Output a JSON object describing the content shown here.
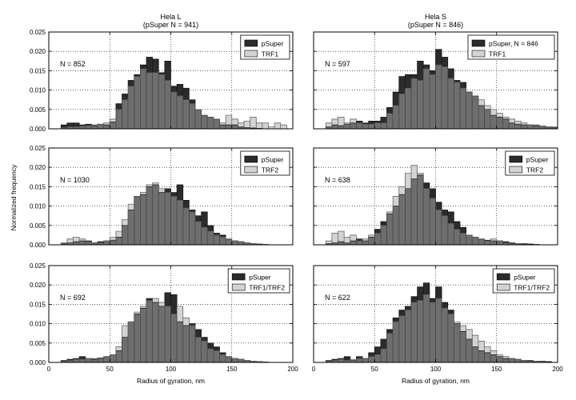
{
  "figure": {
    "ylabel": "Normalized frequency",
    "colors": {
      "pSuper": "#2b2b2b",
      "treatment": "#d3d3d3",
      "overlap": "#6e6e6e"
    }
  },
  "chart_data": [
    {
      "type": "histogram",
      "title": "Hela L\n(pSuper N = 941)",
      "annotation": "N = 852",
      "legend": [
        "pSuper",
        "TRF1"
      ],
      "legend_position": "top-right",
      "xlabel": "",
      "ylabel": "",
      "xlim": [
        0,
        200
      ],
      "ylim": [
        0,
        0.025
      ],
      "xticks": [
        "0",
        "50",
        "100",
        "150",
        "200"
      ],
      "yticks": [
        "0.000",
        "0.005",
        "0.010",
        "0.015",
        "0.020",
        "0.025"
      ],
      "grid": true,
      "bin_start": 10,
      "bin_width": 5,
      "series": [
        {
          "name": "pSuper",
          "values": [
            0.001,
            0.0015,
            0.0015,
            0.001,
            0.0012,
            0.0008,
            0.0012,
            0.001,
            0.0018,
            0.0065,
            0.009,
            0.0125,
            0.014,
            0.0165,
            0.0185,
            0.018,
            0.0145,
            0.0175,
            0.011,
            0.0115,
            0.0105,
            0.0075,
            0.005,
            0.0035,
            0.003,
            0.0025,
            0.001,
            0.001,
            0.001,
            0.0005,
            0.0003,
            0.0002,
            0.0001,
            0.0,
            0.0,
            0.0,
            0.0
          ]
        },
        {
          "name": "TRF1",
          "values": [
            0.0003,
            0.0005,
            0.0005,
            0.0007,
            0.0008,
            0.001,
            0.0012,
            0.0015,
            0.0025,
            0.005,
            0.0075,
            0.011,
            0.0135,
            0.0155,
            0.0145,
            0.0145,
            0.014,
            0.0125,
            0.0095,
            0.0085,
            0.0075,
            0.0065,
            0.005,
            0.0035,
            0.003,
            0.0025,
            0.0015,
            0.0035,
            0.0025,
            0.0015,
            0.002,
            0.003,
            0.0015,
            0.0015,
            0.0005,
            0.0015,
            0.001
          ]
        }
      ]
    },
    {
      "type": "histogram",
      "title": "Hela S\n(pSuper N = 846)",
      "annotation": "N = 597",
      "legend": [
        "pSuper, N = 846",
        "TRF1"
      ],
      "legend_position": "top-right",
      "xlabel": "",
      "ylabel": "",
      "xlim": [
        0,
        200
      ],
      "ylim": [
        0,
        0.025
      ],
      "xticks": [
        "0",
        "50",
        "100",
        "150",
        "200"
      ],
      "yticks": [
        "0.000",
        "0.005",
        "0.010",
        "0.015",
        "0.020",
        "0.025"
      ],
      "grid": true,
      "bin_start": 10,
      "bin_width": 5,
      "series": [
        {
          "name": "pSuper, N = 846",
          "values": [
            0.0005,
            0.001,
            0.0008,
            0.0012,
            0.0015,
            0.002,
            0.0015,
            0.002,
            0.002,
            0.003,
            0.0055,
            0.0095,
            0.0135,
            0.014,
            0.014,
            0.0175,
            0.0165,
            0.015,
            0.0205,
            0.0185,
            0.0155,
            0.0125,
            0.012,
            0.0095,
            0.0085,
            0.006,
            0.005,
            0.0035,
            0.003,
            0.0025,
            0.0015,
            0.0012,
            0.001,
            0.001,
            0.0008,
            0.0005,
            0.0005,
            0.0003,
            0.0003
          ]
        },
        {
          "name": "TRF1",
          "values": [
            0.0015,
            0.0025,
            0.003,
            0.0015,
            0.0025,
            0.0015,
            0.0012,
            0.0012,
            0.0015,
            0.0015,
            0.004,
            0.006,
            0.009,
            0.0105,
            0.013,
            0.0125,
            0.0155,
            0.014,
            0.0165,
            0.016,
            0.013,
            0.012,
            0.0105,
            0.0095,
            0.0085,
            0.0075,
            0.006,
            0.005,
            0.004,
            0.003,
            0.0025,
            0.002,
            0.0015,
            0.001,
            0.001,
            0.0008,
            0.0005,
            0.0005,
            0.0003
          ]
        }
      ]
    },
    {
      "type": "histogram",
      "title": "",
      "annotation": "N = 1030",
      "legend": [
        "pSuper",
        "TRF2"
      ],
      "legend_position": "top-right",
      "xlabel": "",
      "ylabel": "",
      "xlim": [
        0,
        200
      ],
      "ylim": [
        0,
        0.025
      ],
      "xticks": [
        "0",
        "50",
        "100",
        "150",
        "200"
      ],
      "yticks": [
        "0.000",
        "0.005",
        "0.010",
        "0.015",
        "0.020",
        "0.025"
      ],
      "grid": true,
      "bin_start": 10,
      "bin_width": 5,
      "series": [
        {
          "name": "pSuper",
          "values": [
            0.0003,
            0.0005,
            0.0008,
            0.001,
            0.001,
            0.0005,
            0.0008,
            0.001,
            0.0012,
            0.002,
            0.005,
            0.009,
            0.0125,
            0.013,
            0.015,
            0.0155,
            0.0135,
            0.0145,
            0.0135,
            0.0155,
            0.0115,
            0.009,
            0.0075,
            0.0085,
            0.005,
            0.003,
            0.0025,
            0.0015,
            0.001,
            0.0008,
            0.0005,
            0.0003,
            0.0002,
            0.0001,
            0.0,
            0.0,
            0.0
          ]
        },
        {
          "name": "TRF2",
          "values": [
            0.0005,
            0.0015,
            0.002,
            0.0015,
            0.0008,
            0.0005,
            0.0005,
            0.001,
            0.002,
            0.0035,
            0.0065,
            0.0105,
            0.0125,
            0.0135,
            0.0155,
            0.016,
            0.0145,
            0.0135,
            0.0125,
            0.0115,
            0.0095,
            0.0085,
            0.006,
            0.0045,
            0.0035,
            0.0025,
            0.002,
            0.0015,
            0.001,
            0.0008,
            0.0005,
            0.0003,
            0.0002,
            0.0001,
            0.0,
            0.0,
            0.0
          ]
        }
      ]
    },
    {
      "type": "histogram",
      "title": "",
      "annotation": "N = 638",
      "legend": [
        "pSuper",
        "TRF2"
      ],
      "legend_position": "top-right",
      "xlabel": "",
      "ylabel": "",
      "xlim": [
        0,
        200
      ],
      "ylim": [
        0,
        0.025
      ],
      "xticks": [
        "0",
        "50",
        "100",
        "150",
        "200"
      ],
      "yticks": [
        "0.000",
        "0.005",
        "0.010",
        "0.015",
        "0.020",
        "0.025"
      ],
      "grid": true,
      "bin_start": 10,
      "bin_width": 5,
      "series": [
        {
          "name": "pSuper",
          "values": [
            0.0003,
            0.0005,
            0.0008,
            0.0005,
            0.001,
            0.0015,
            0.001,
            0.002,
            0.004,
            0.006,
            0.008,
            0.01,
            0.013,
            0.0145,
            0.017,
            0.018,
            0.016,
            0.0145,
            0.011,
            0.009,
            0.0085,
            0.006,
            0.0045,
            0.0025,
            0.002,
            0.0015,
            0.0012,
            0.001,
            0.001,
            0.0008,
            0.0005,
            0.0003,
            0.0003,
            0.0002,
            0.0001,
            0.0,
            0.0
          ]
        },
        {
          "name": "TRF2",
          "values": [
            0.001,
            0.003,
            0.0035,
            0.002,
            0.0025,
            0.001,
            0.0015,
            0.0025,
            0.003,
            0.005,
            0.0085,
            0.0125,
            0.015,
            0.0185,
            0.0205,
            0.0185,
            0.0145,
            0.012,
            0.009,
            0.0075,
            0.0055,
            0.004,
            0.003,
            0.0025,
            0.002,
            0.0015,
            0.001,
            0.0015,
            0.001,
            0.0005,
            0.0003,
            0.0002,
            0.0001,
            0.0,
            0.0,
            0.0,
            0.0
          ]
        }
      ]
    },
    {
      "type": "histogram",
      "title": "",
      "annotation": "N = 692",
      "legend": [
        "pSuper",
        "TRF1/TRF2"
      ],
      "legend_position": "top-right",
      "xlabel": "Radius of gyration, nm",
      "ylabel": "",
      "xlim": [
        0,
        200
      ],
      "ylim": [
        0,
        0.025
      ],
      "xticks": [
        "0",
        "50",
        "100",
        "150",
        "200"
      ],
      "yticks": [
        "0.000",
        "0.005",
        "0.010",
        "0.015",
        "0.020",
        "0.025"
      ],
      "grid": true,
      "bin_start": 10,
      "bin_width": 5,
      "series": [
        {
          "name": "pSuper",
          "values": [
            0.0005,
            0.0008,
            0.001,
            0.0015,
            0.001,
            0.0008,
            0.001,
            0.0015,
            0.002,
            0.003,
            0.0065,
            0.0105,
            0.0125,
            0.014,
            0.0165,
            0.0155,
            0.0145,
            0.018,
            0.0175,
            0.0105,
            0.0095,
            0.01,
            0.0085,
            0.0065,
            0.005,
            0.004,
            0.0025,
            0.0015,
            0.001,
            0.0008,
            0.0005,
            0.0003,
            0.0002,
            0.0001,
            0.0,
            0.0,
            0.0
          ]
        },
        {
          "name": "TRF1/TRF2",
          "values": [
            0.0003,
            0.0005,
            0.0008,
            0.0008,
            0.001,
            0.001,
            0.0012,
            0.0015,
            0.002,
            0.004,
            0.0095,
            0.0105,
            0.013,
            0.0145,
            0.016,
            0.0165,
            0.0155,
            0.0145,
            0.0125,
            0.0145,
            0.0115,
            0.0095,
            0.0065,
            0.0055,
            0.0035,
            0.003,
            0.002,
            0.0015,
            0.001,
            0.0008,
            0.0005,
            0.0003,
            0.0002,
            0.0001,
            0.0,
            0.0,
            0.0
          ]
        }
      ]
    },
    {
      "type": "histogram",
      "title": "",
      "annotation": "N = 622",
      "legend": [
        "pSuper",
        "TRF1/TRF2"
      ],
      "legend_position": "top-right",
      "xlabel": "Radius of gyration, nm",
      "ylabel": "",
      "xlim": [
        0,
        200
      ],
      "ylim": [
        0,
        0.025
      ],
      "xticks": [
        "0",
        "50",
        "100",
        "150",
        "200"
      ],
      "yticks": [
        "0.000",
        "0.005",
        "0.010",
        "0.015",
        "0.020",
        "0.025"
      ],
      "grid": true,
      "bin_start": 10,
      "bin_width": 5,
      "series": [
        {
          "name": "pSuper",
          "values": [
            0.0005,
            0.0008,
            0.001,
            0.0015,
            0.0005,
            0.0015,
            0.001,
            0.0025,
            0.004,
            0.006,
            0.0085,
            0.0115,
            0.0135,
            0.0145,
            0.017,
            0.0195,
            0.0205,
            0.0165,
            0.0195,
            0.0155,
            0.0135,
            0.01,
            0.008,
            0.006,
            0.004,
            0.003,
            0.0025,
            0.002,
            0.0015,
            0.001,
            0.001,
            0.0008,
            0.0005,
            0.0005,
            0.0003,
            0.0003,
            0.0002
          ]
        },
        {
          "name": "TRF1/TRF2",
          "values": [
            0.0003,
            0.0005,
            0.0008,
            0.0005,
            0.0008,
            0.001,
            0.001,
            0.0015,
            0.002,
            0.0035,
            0.0075,
            0.0105,
            0.012,
            0.0135,
            0.0155,
            0.016,
            0.0175,
            0.0155,
            0.0165,
            0.014,
            0.0125,
            0.0105,
            0.0095,
            0.0085,
            0.007,
            0.0055,
            0.004,
            0.003,
            0.002,
            0.0015,
            0.001,
            0.0008,
            0.0005,
            0.0003,
            0.0002,
            0.0001,
            0.0
          ]
        }
      ]
    }
  ]
}
